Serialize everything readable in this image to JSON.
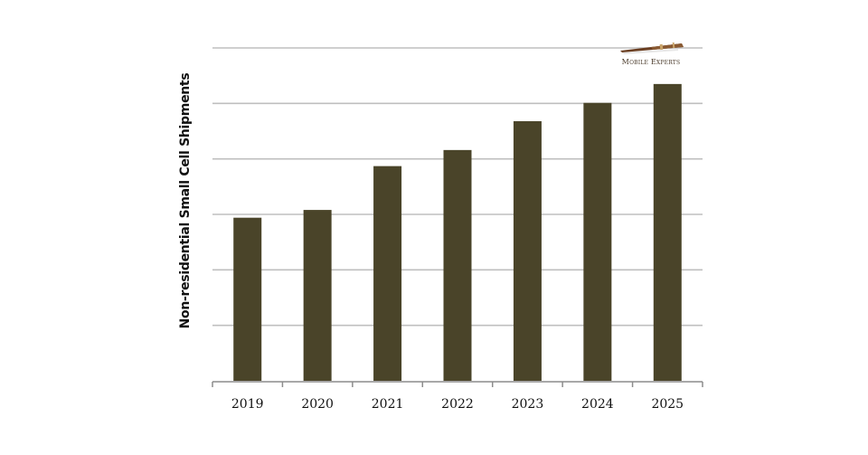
{
  "chart_data": {
    "type": "bar",
    "title": "",
    "xlabel": "",
    "ylabel": "Non-residential Small Cell Shipments",
    "categories": [
      "2019",
      "2020",
      "2021",
      "2022",
      "2023",
      "2024",
      "2025"
    ],
    "values": [
      2.94,
      3.08,
      3.87,
      4.16,
      4.68,
      5.01,
      5.35
    ],
    "value_units": "relative (gridline units; y-axis unlabeled)",
    "ylim": [
      0,
      6
    ],
    "gridlines": 6,
    "grid": true,
    "legend": null,
    "bar_color": "#4a4429",
    "grid_color": "#bfbfbf"
  },
  "branding": {
    "logo_text": "Mobile Experts",
    "logo_icon": "telescope-icon"
  }
}
